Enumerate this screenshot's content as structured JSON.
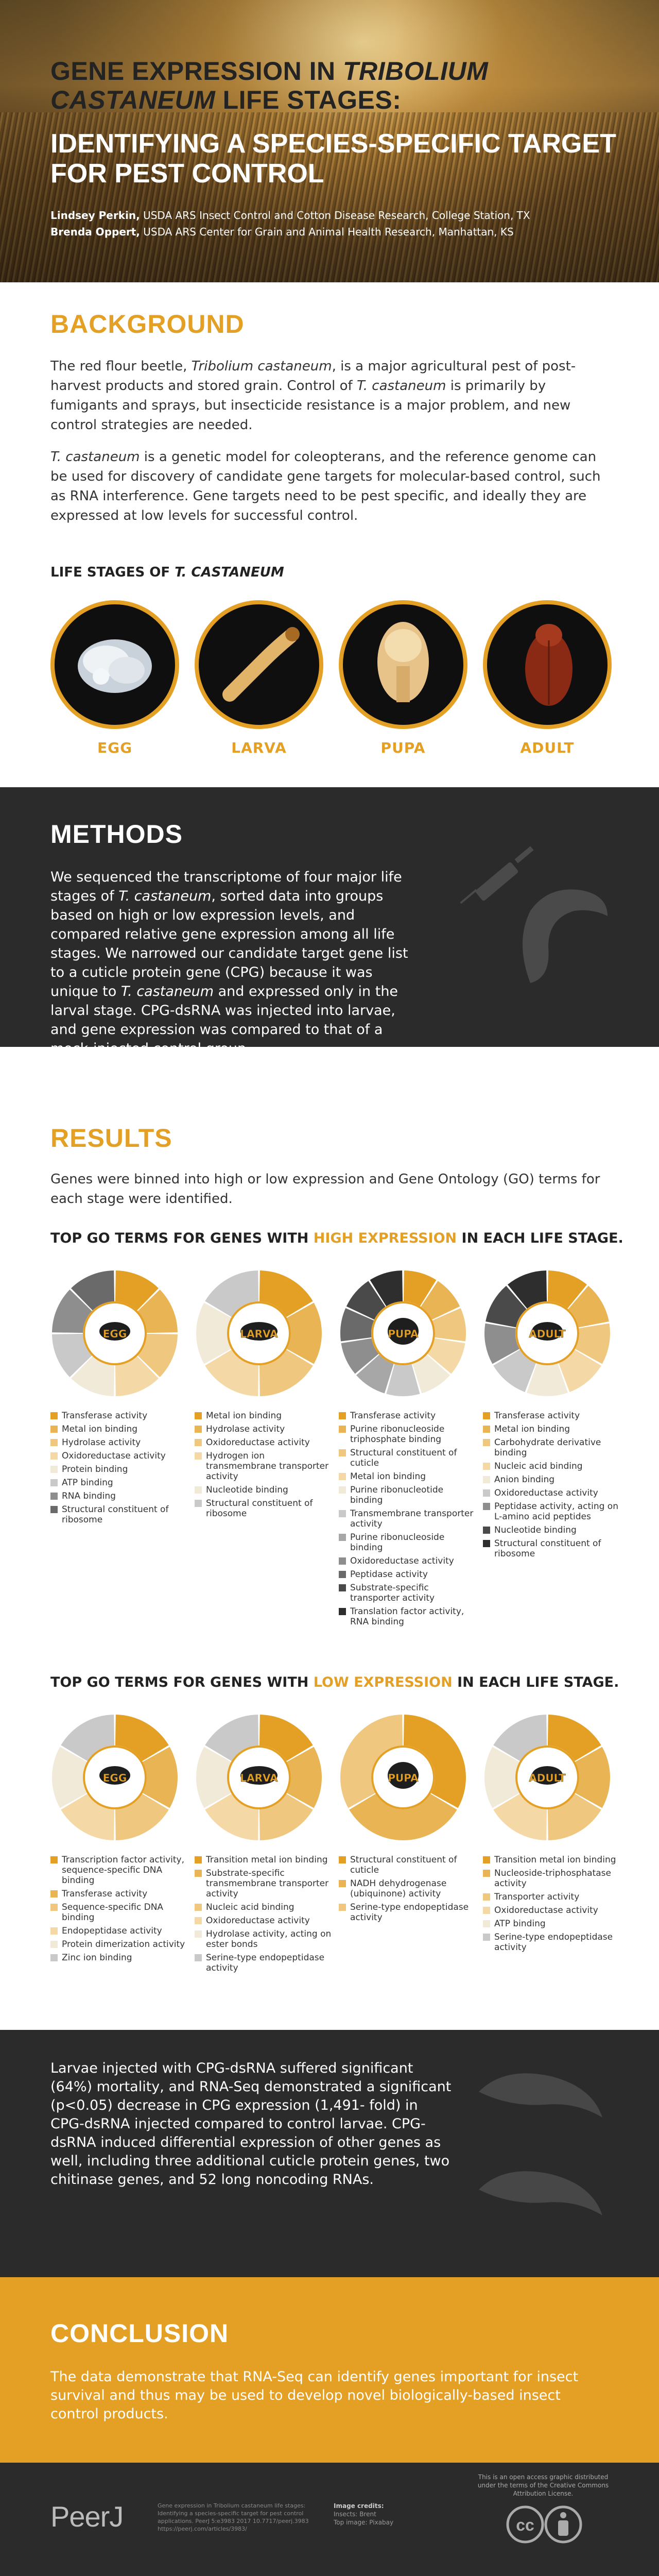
{
  "colors": {
    "gold": "#e3a024",
    "dark": "#2b2b2b"
  },
  "hero": {
    "title_line1": "GENE EXPRESSION IN ",
    "title_italic": "TRIBOLIUM CASTANEUM",
    "title_line2": " LIFE STAGES:",
    "subtitle": "IDENTIFYING A SPECIES-SPECIFIC TARGET FOR PEST CONTROL",
    "authors": [
      {
        "name": "Lindsey Perkin,",
        "affiliation": " USDA ARS Insect Control and Cotton Disease Research, College Station, TX"
      },
      {
        "name": "Brenda Oppert,",
        "affiliation": " USDA ARS Center for Grain and Animal Health Research, Manhattan, KS"
      }
    ]
  },
  "background": {
    "title": "BACKGROUND",
    "p1": [
      "The red flour beetle, ",
      "Tribolium castaneum",
      ", is a major agricultural pest of post-harvest products and stored grain. Control of ",
      "T. castaneum",
      " is primarily by fumigants and sprays, but insecticide resistance is a major problem, and new control strategies are needed."
    ],
    "p2": [
      "T. castaneum",
      " is a genetic model for coleopterans, and the reference genome can be used for discovery of candidate gene targets for molecular-based control, such as RNA interference. Gene targets need to be pest specific, and ideally they are expressed at low levels for successful control."
    ],
    "stages_heading": "LIFE STAGES OF ",
    "stages_heading_italic": "T. CASTANEUM",
    "stages": [
      "EGG",
      "LARVA",
      "PUPA",
      "ADULT"
    ]
  },
  "methods": {
    "title": "METHODS",
    "text": [
      "We sequenced the transcriptome of four major life stages of ",
      "T. castaneum",
      ", sorted data into groups based on high or low expression levels, and compared relative gene expression among all life stages. We narrowed our candidate target gene list to a cuticle protein gene (CPG) because it was unique to ",
      "T. castaneum",
      " and expressed only in the larval stage. CPG-dsRNA was injected into larvae, and gene expression was compared to that of a mock-injected control group."
    ],
    "icons": [
      "syringe-icon",
      "larva-silhouette-icon"
    ]
  },
  "results": {
    "title": "RESULTS",
    "text": "Genes were binned into high or low expression and Gene Ontology (GO) terms for each stage were identified.",
    "high_heading": [
      "TOP GO TERMS FOR GENES WITH ",
      "HIGH EXPRESSION",
      " IN EACH LIFE STAGE."
    ],
    "low_heading": [
      "TOP GO TERMS FOR GENES WITH ",
      "LOW EXPRESSION",
      " IN EACH LIFE STAGE."
    ],
    "high": [
      {
        "stage": "EGG",
        "terms": [
          "Transferase activity",
          "Metal ion binding",
          "Hydrolase activity",
          "Oxidoreductase activity",
          "Protein binding",
          "ATP binding",
          "RNA binding",
          "Structural constituent of ribosome"
        ],
        "colors": [
          "#e3a024",
          "#e9b453",
          "#efc77e",
          "#f4d9a6",
          "#f2ead9",
          "#c9c9c9",
          "#8e8e8e",
          "#6a6a6a"
        ]
      },
      {
        "stage": "LARVA",
        "terms": [
          "Metal ion binding",
          "Hydrolase activity",
          "Oxidoreductase activity",
          "Hydrogen ion transmembrane transporter activity",
          "Nucleotide binding",
          "Structural constituent of ribosome"
        ],
        "colors": [
          "#e3a024",
          "#e9b453",
          "#efc77e",
          "#f4d9a6",
          "#f2ead9",
          "#c9c9c9"
        ]
      },
      {
        "stage": "PUPA",
        "terms": [
          "Transferase activity",
          "Purine ribonucleoside triphosphate binding",
          "Structural constituent of cuticle",
          "Metal ion binding",
          "Purine ribonucleotide binding",
          "Transmembrane transporter activity",
          "Purine ribonucleoside binding",
          "Oxidoreductase activity",
          "Peptidase activity",
          "Substrate-specific transporter activity",
          "Translation factor activity, RNA binding"
        ],
        "colors": [
          "#e3a024",
          "#e9b453",
          "#efc77e",
          "#f4d9a6",
          "#f2ead9",
          "#c9c9c9",
          "#a7a7a7",
          "#8e8e8e",
          "#6a6a6a",
          "#4a4a4a",
          "#2e2e2e"
        ]
      },
      {
        "stage": "ADULT",
        "terms": [
          "Transferase activity",
          "Metal ion binding",
          "Carbohydrate derivative binding",
          "Nucleic acid binding",
          "Anion binding",
          "Oxidoreductase activity",
          "Peptidase activity, acting on L-amino acid peptides",
          "Nucleotide binding",
          "Structural constituent of ribosome"
        ],
        "colors": [
          "#e3a024",
          "#e9b453",
          "#efc77e",
          "#f4d9a6",
          "#f2ead9",
          "#c9c9c9",
          "#8e8e8e",
          "#4a4a4a",
          "#2e2e2e"
        ]
      }
    ],
    "low": [
      {
        "stage": "EGG",
        "terms": [
          "Transcription factor activity, sequence-specific DNA binding",
          "Transferase activity",
          "Sequence-specific DNA binding",
          "Endopeptidase activity",
          "Protein dimerization activity",
          "Zinc ion binding"
        ],
        "colors": [
          "#e3a024",
          "#e9b453",
          "#efc77e",
          "#f4d9a6",
          "#f2ead9",
          "#c9c9c9"
        ]
      },
      {
        "stage": "LARVA",
        "terms": [
          "Transition metal ion binding",
          "Substrate-specific transmembrane transporter activity",
          "Nucleic acid binding",
          "Oxidoreductase activity",
          "Hydrolase activity, acting on ester bonds",
          "Serine-type endopeptidase activity"
        ],
        "colors": [
          "#e3a024",
          "#e9b453",
          "#efc77e",
          "#f4d9a6",
          "#f2ead9",
          "#c9c9c9"
        ]
      },
      {
        "stage": "PUPA",
        "terms": [
          "Structural constituent of cuticle",
          "NADH dehydrogenase (ubiquinone) activity",
          "Serine-type endopeptidase activity"
        ],
        "colors": [
          "#e3a024",
          "#e9b453",
          "#efc77e"
        ]
      },
      {
        "stage": "ADULT",
        "terms": [
          "Transition metal ion binding",
          "Nucleoside-triphosphatase activity",
          "Transporter activity",
          "Oxidoreductase activity",
          "ATP binding",
          "Serine-type endopeptidase activity"
        ],
        "colors": [
          "#e3a024",
          "#e9b453",
          "#efc77e",
          "#f4d9a6",
          "#f2ead9",
          "#c9c9c9"
        ]
      }
    ],
    "dark_text": "Larvae injected with CPG-dsRNA suffered significant (64%) mortality, and RNA-Seq demonstrated a significant (p<0.05) decrease in CPG expression (1,491- fold) in CPG-dsRNA injected compared to control larvae. CPG-dsRNA induced differential expression of other genes as well, including three additional cuticle protein genes, two chitinase genes, and 52 long noncoding RNAs."
  },
  "conclusion": {
    "title": "CONCLUSION",
    "text": "The data demonstrate that RNA-Seq can identify genes important for insect survival and thus may be used to develop novel biologically-based insect control products."
  },
  "footer": {
    "logo": "PeerJ",
    "citation": "Gene expression in Tribolium castaneum life stages: Identifying a species-specific target for pest control applications. PeerJ 5:e3983 2017 10.7717/peerj.3983 https://peerj.com/articles/3983/",
    "credits_title": "Image credits:",
    "credits": [
      "Insects: Brent",
      "Top image: Pixabay"
    ],
    "license": "This is an open access graphic distributed under the terms of the Creative Commons Attribution License."
  }
}
